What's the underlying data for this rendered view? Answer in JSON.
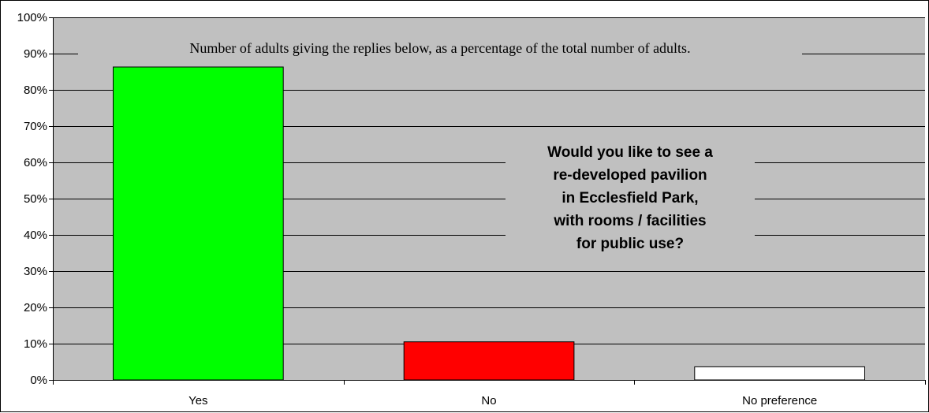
{
  "chart_data": {
    "type": "bar",
    "categories": [
      "Yes",
      "No",
      "No preference"
    ],
    "values": [
      86.3,
      10.5,
      3.6
    ],
    "bar_colors": [
      "#00FF00",
      "#FF0000",
      "#FFFFFF"
    ],
    "ylim": [
      0,
      100
    ],
    "ytick_values": [
      0,
      10,
      20,
      30,
      40,
      50,
      60,
      70,
      80,
      90,
      100
    ],
    "ytick_labels": [
      "0%",
      "10%",
      "20%",
      "30%",
      "40%",
      "50%",
      "60%",
      "70%",
      "80%",
      "90%",
      "100%"
    ],
    "grid": true,
    "plot_background": "#C0C0C0",
    "subtitle": "Number of adults giving the replies below, as a percentage of the total number of adults.",
    "question_lines": [
      "Would you like to see a",
      "re-developed pavilion",
      "in Ecclesfield Park,",
      "with rooms / facilities",
      "for public use?"
    ]
  }
}
